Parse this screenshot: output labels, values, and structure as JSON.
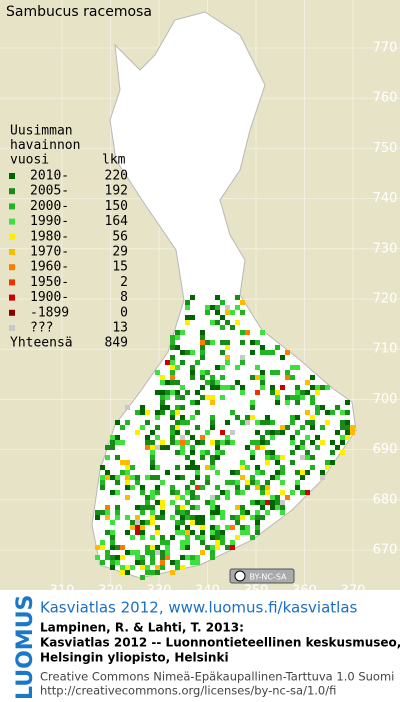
{
  "title": "Sambucus racemosa",
  "map": {
    "xticks": [
      310,
      320,
      330,
      340,
      350,
      360,
      370
    ],
    "yticks": [
      770,
      760,
      750,
      740,
      730,
      720,
      710,
      700,
      690,
      680,
      670
    ]
  },
  "legend": {
    "heading": [
      "Uusimman",
      "havainnon",
      "vuosi"
    ],
    "count_heading": "lkm",
    "items": [
      {
        "label": "2010-",
        "count": 220,
        "color": "#006400"
      },
      {
        "label": "2005-",
        "count": 192,
        "color": "#178a17"
      },
      {
        "label": "2000-",
        "count": 150,
        "color": "#22b522"
      },
      {
        "label": "1990-",
        "count": 164,
        "color": "#3ee03e"
      },
      {
        "label": "1980-",
        "count": 56,
        "color": "#ffee00"
      },
      {
        "label": "1970-",
        "count": 29,
        "color": "#ffbb00"
      },
      {
        "label": "1960-",
        "count": 15,
        "color": "#ff7a00"
      },
      {
        "label": "1950-",
        "count": 2,
        "color": "#ee3300"
      },
      {
        "label": "1900-",
        "count": 8,
        "color": "#cc0000"
      },
      {
        "label": "-1899",
        "count": 0,
        "color": "#880000"
      },
      {
        "label": "???",
        "count": 13,
        "color": "#c8c8c8"
      }
    ],
    "total_label": "Yhteensä",
    "total": 849
  },
  "license_badge": "BY-NC-SA",
  "logo": "LUOMUS",
  "footer": {
    "link": "Kasviatlas 2012, www.luomus.fi/kasviatlas",
    "citation": [
      "Lampinen, R. & Lahti, T. 2013:",
      "Kasviatlas 2012 -- Luonnontieteellinen keskusmuseo,",
      "Helsingin yliopisto, Helsinki"
    ],
    "license": [
      "Creative Commons Nimeä-Epäkaupallinen-Tarttuva 1.0 Suomi",
      "http://creativecommons.org/licenses/by-nc-sa/1.0/fi"
    ]
  }
}
